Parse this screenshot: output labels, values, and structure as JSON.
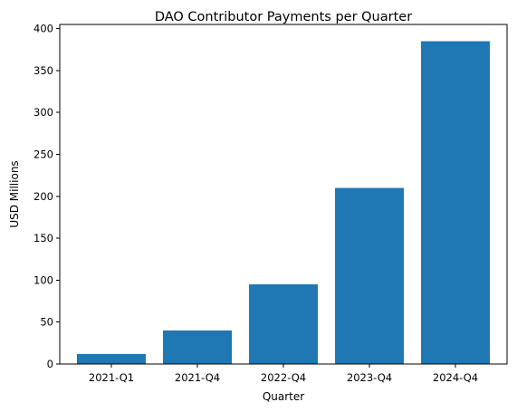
{
  "chart_data": {
    "type": "bar",
    "title": "DAO Contributor Payments per Quarter",
    "xlabel": "Quarter",
    "ylabel": "USD Millions",
    "categories": [
      "2021-Q1",
      "2021-Q4",
      "2022-Q4",
      "2023-Q4",
      "2024-Q4"
    ],
    "values": [
      12,
      40,
      95,
      210,
      385
    ],
    "ylim": [
      0,
      405
    ],
    "yticks": [
      0,
      50,
      100,
      150,
      200,
      250,
      300,
      350,
      400
    ],
    "grid": false,
    "legend": "none",
    "bar_color": "#1f77b4"
  }
}
